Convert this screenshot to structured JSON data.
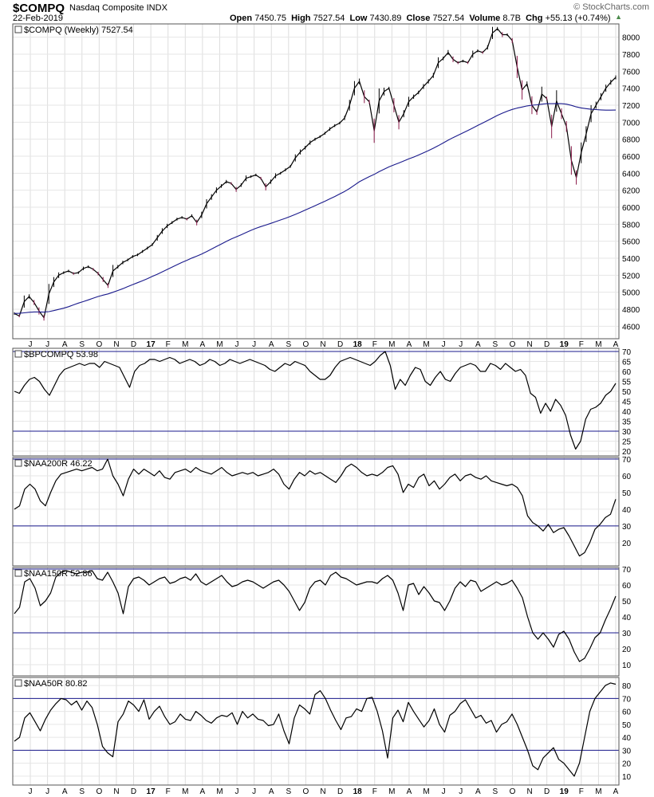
{
  "header": {
    "ticker": "$COMPQ",
    "name": "Nasdaq Composite",
    "exchange": "INDX",
    "date": "22-Feb-2019",
    "open_label": "Open",
    "open": "7450.75",
    "high_label": "High",
    "high": "7527.54",
    "low_label": "Low",
    "low": "7430.89",
    "close_label": "Close",
    "close": "7527.54",
    "volume_label": "Volume",
    "volume": "8.7B",
    "chg_label": "Chg",
    "chg": "+55.13 (+0.74%)",
    "copyright": "© StockCharts.com"
  },
  "months": [
    "J",
    "J",
    "A",
    "S",
    "O",
    "N",
    "D",
    "17",
    "F",
    "M",
    "A",
    "M",
    "J",
    "J",
    "A",
    "S",
    "O",
    "N",
    "D",
    "18",
    "F",
    "M",
    "A",
    "M",
    "J",
    "J",
    "A",
    "S",
    "O",
    "N",
    "D",
    "19",
    "F",
    "M",
    "A"
  ],
  "colors": {
    "price": "#000000",
    "ma": "#1a1a8c",
    "down": "#8b1a4a",
    "ref": "#1a1a8c",
    "line": "#000000",
    "border": "#555555"
  },
  "chart_data": [
    {
      "type": "line",
      "label": "$COMPQ (Weekly) 7527.54",
      "ylim": [
        4500,
        8100
      ],
      "yticks": [
        4600,
        4800,
        5000,
        5200,
        5400,
        5600,
        5800,
        6000,
        6200,
        6400,
        6600,
        6800,
        7000,
        7200,
        7400,
        7600,
        7800,
        8000
      ],
      "series": [
        {
          "values": [
            4750,
            4720,
            4890,
            4950,
            4880,
            4780,
            4700,
            4980,
            5120,
            5200,
            5230,
            5250,
            5220,
            5230,
            5280,
            5300,
            5270,
            5220,
            5150,
            5080,
            5250,
            5300,
            5350,
            5380,
            5420,
            5440,
            5480,
            5520,
            5560,
            5640,
            5720,
            5780,
            5820,
            5860,
            5880,
            5860,
            5900,
            5820,
            5910,
            6040,
            6120,
            6200,
            6250,
            6300,
            6280,
            6210,
            6260,
            6340,
            6360,
            6380,
            6340,
            6240,
            6300,
            6370,
            6400,
            6440,
            6480,
            6580,
            6650,
            6700,
            6760,
            6800,
            6830,
            6870,
            6920,
            6960,
            6990,
            7050,
            7200,
            7400,
            7480,
            7300,
            7240,
            6900,
            7250,
            7360,
            7400,
            7200,
            7000,
            7100,
            7240,
            7300,
            7350,
            7420,
            7480,
            7550,
            7700,
            7750,
            7820,
            7740,
            7700,
            7720,
            7700,
            7800,
            7840,
            7820,
            7880,
            8050,
            8100,
            8030,
            8030,
            7960,
            7650,
            7380,
            7450,
            7200,
            7120,
            7330,
            7280,
            6950,
            7250,
            7100,
            6950,
            6550,
            6350,
            6640,
            6860,
            7100,
            7200,
            7300,
            7400,
            7470,
            7527
          ]
        },
        {
          "name": "MA",
          "values": [
            4750,
            4752,
            4758,
            4764,
            4768,
            4768,
            4766,
            4772,
            4784,
            4798,
            4812,
            4830,
            4852,
            4872,
            4890,
            4910,
            4930,
            4950,
            4966,
            4980,
            5000,
            5020,
            5042,
            5066,
            5090,
            5112,
            5136,
            5160,
            5186,
            5212,
            5240,
            5268,
            5296,
            5324,
            5350,
            5376,
            5402,
            5424,
            5450,
            5478,
            5508,
            5538,
            5568,
            5598,
            5626,
            5650,
            5676,
            5702,
            5728,
            5752,
            5772,
            5790,
            5810,
            5830,
            5850,
            5870,
            5892,
            5916,
            5940,
            5966,
            5992,
            6018,
            6044,
            6070,
            6098,
            6126,
            6156,
            6186,
            6220,
            6260,
            6300,
            6330,
            6360,
            6386,
            6418,
            6446,
            6474,
            6498,
            6520,
            6544,
            6568,
            6590,
            6614,
            6640,
            6666,
            6694,
            6724,
            6756,
            6788,
            6818,
            6846,
            6874,
            6902,
            6932,
            6962,
            6990,
            7020,
            7050,
            7080,
            7106,
            7130,
            7150,
            7166,
            7178,
            7192,
            7200,
            7205,
            7212,
            7218,
            7218,
            7220,
            7218,
            7212,
            7198,
            7180,
            7168,
            7160,
            7152,
            7148,
            7145,
            7142,
            7142,
            7143
          ]
        }
      ]
    },
    {
      "type": "line",
      "label": "$BPCOMPQ 53.98",
      "ylim": [
        20,
        70
      ],
      "yticks": [
        20,
        25,
        30,
        35,
        40,
        45,
        50,
        55,
        60,
        65,
        70
      ],
      "reference_lines": [
        70,
        30
      ],
      "series": [
        {
          "values": [
            50,
            49,
            53,
            56,
            57,
            55,
            51,
            48,
            53,
            58,
            61,
            62,
            63,
            64,
            63,
            64,
            64,
            62,
            65,
            64,
            63,
            62,
            57,
            52,
            60,
            63,
            64,
            66,
            66,
            65,
            66,
            67,
            66,
            64,
            65,
            66,
            65,
            63,
            64,
            66,
            65,
            63,
            64,
            66,
            65,
            64,
            65,
            66,
            65,
            64,
            63,
            61,
            60,
            62,
            64,
            63,
            65,
            64,
            63,
            60,
            58,
            56,
            56,
            58,
            62,
            65,
            66,
            67,
            66,
            65,
            64,
            63,
            65,
            68,
            70,
            63,
            51,
            56,
            53,
            58,
            62,
            61,
            55,
            53,
            57,
            60,
            56,
            55,
            59,
            62,
            63,
            64,
            63,
            60,
            60,
            64,
            63,
            61,
            64,
            62,
            60,
            61,
            58,
            49,
            47,
            39,
            44,
            40,
            46,
            43,
            38,
            28,
            21,
            25,
            36,
            41,
            42,
            44,
            48,
            50,
            54
          ]
        }
      ]
    },
    {
      "type": "line",
      "label": "$NAA200R 46.22",
      "ylim": [
        8,
        70
      ],
      "yticks": [
        20,
        30,
        40,
        50,
        60,
        70
      ],
      "reference_lines": [
        70,
        30
      ],
      "series": [
        {
          "values": [
            40,
            42,
            52,
            55,
            52,
            45,
            42,
            50,
            57,
            61,
            62,
            63,
            64,
            63,
            64,
            65,
            63,
            64,
            70,
            60,
            55,
            48,
            58,
            64,
            61,
            64,
            62,
            60,
            63,
            59,
            58,
            62,
            63,
            64,
            62,
            65,
            63,
            62,
            61,
            63,
            65,
            62,
            60,
            61,
            62,
            61,
            62,
            60,
            61,
            62,
            64,
            61,
            55,
            52,
            58,
            62,
            60,
            63,
            61,
            62,
            60,
            58,
            56,
            60,
            65,
            67,
            65,
            62,
            60,
            61,
            60,
            62,
            65,
            66,
            61,
            50,
            55,
            53,
            59,
            61,
            54,
            57,
            52,
            55,
            59,
            61,
            57,
            60,
            61,
            59,
            58,
            60,
            57,
            56,
            55,
            54,
            55,
            53,
            48,
            36,
            32,
            30,
            27,
            31,
            26,
            28,
            29,
            24,
            18,
            12,
            14,
            20,
            28,
            31,
            35,
            37,
            46
          ]
        }
      ]
    },
    {
      "type": "line",
      "label": "$NAA150R 52.86",
      "ylim": [
        5,
        70
      ],
      "yticks": [
        10,
        20,
        30,
        40,
        50,
        60,
        70
      ],
      "reference_lines": [
        70,
        30
      ],
      "series": [
        {
          "values": [
            42,
            46,
            62,
            64,
            58,
            47,
            50,
            55,
            65,
            68,
            69,
            68,
            67,
            68,
            68,
            69,
            64,
            63,
            68,
            62,
            55,
            42,
            59,
            64,
            65,
            63,
            60,
            62,
            64,
            65,
            61,
            62,
            64,
            65,
            63,
            67,
            62,
            60,
            62,
            64,
            66,
            62,
            59,
            60,
            62,
            63,
            62,
            60,
            58,
            60,
            62,
            63,
            60,
            56,
            50,
            44,
            49,
            58,
            62,
            63,
            60,
            66,
            68,
            65,
            64,
            62,
            60,
            61,
            62,
            62,
            61,
            64,
            66,
            63,
            55,
            44,
            60,
            61,
            54,
            59,
            55,
            50,
            49,
            44,
            50,
            58,
            62,
            59,
            63,
            62,
            56,
            58,
            60,
            62,
            60,
            61,
            63,
            58,
            52,
            40,
            30,
            26,
            30,
            26,
            21,
            29,
            31,
            26,
            18,
            12,
            14,
            20,
            27,
            30,
            38,
            45,
            53
          ]
        }
      ]
    },
    {
      "type": "line",
      "label": "$NAA50R 80.82",
      "ylim": [
        5,
        85
      ],
      "yticks": [
        10,
        20,
        30,
        40,
        50,
        60,
        70,
        80
      ],
      "reference_lines": [
        70,
        30
      ],
      "series": [
        {
          "values": [
            37,
            40,
            55,
            59,
            52,
            45,
            54,
            61,
            66,
            70,
            69,
            65,
            68,
            61,
            68,
            63,
            50,
            33,
            28,
            25,
            52,
            58,
            68,
            65,
            60,
            69,
            54,
            60,
            64,
            56,
            50,
            52,
            58,
            54,
            53,
            60,
            57,
            53,
            51,
            55,
            57,
            56,
            59,
            50,
            60,
            55,
            58,
            54,
            53,
            49,
            50,
            58,
            45,
            35,
            55,
            65,
            62,
            58,
            73,
            76,
            70,
            61,
            53,
            46,
            55,
            56,
            62,
            60,
            70,
            71,
            60,
            45,
            24,
            55,
            61,
            52,
            67,
            60,
            54,
            48,
            53,
            62,
            50,
            44,
            57,
            60,
            66,
            69,
            62,
            55,
            57,
            51,
            53,
            44,
            50,
            52,
            58,
            50,
            40,
            30,
            18,
            15,
            24,
            28,
            32,
            23,
            20,
            15,
            10,
            20,
            40,
            60,
            70,
            75,
            80,
            82,
            81
          ]
        }
      ]
    }
  ]
}
